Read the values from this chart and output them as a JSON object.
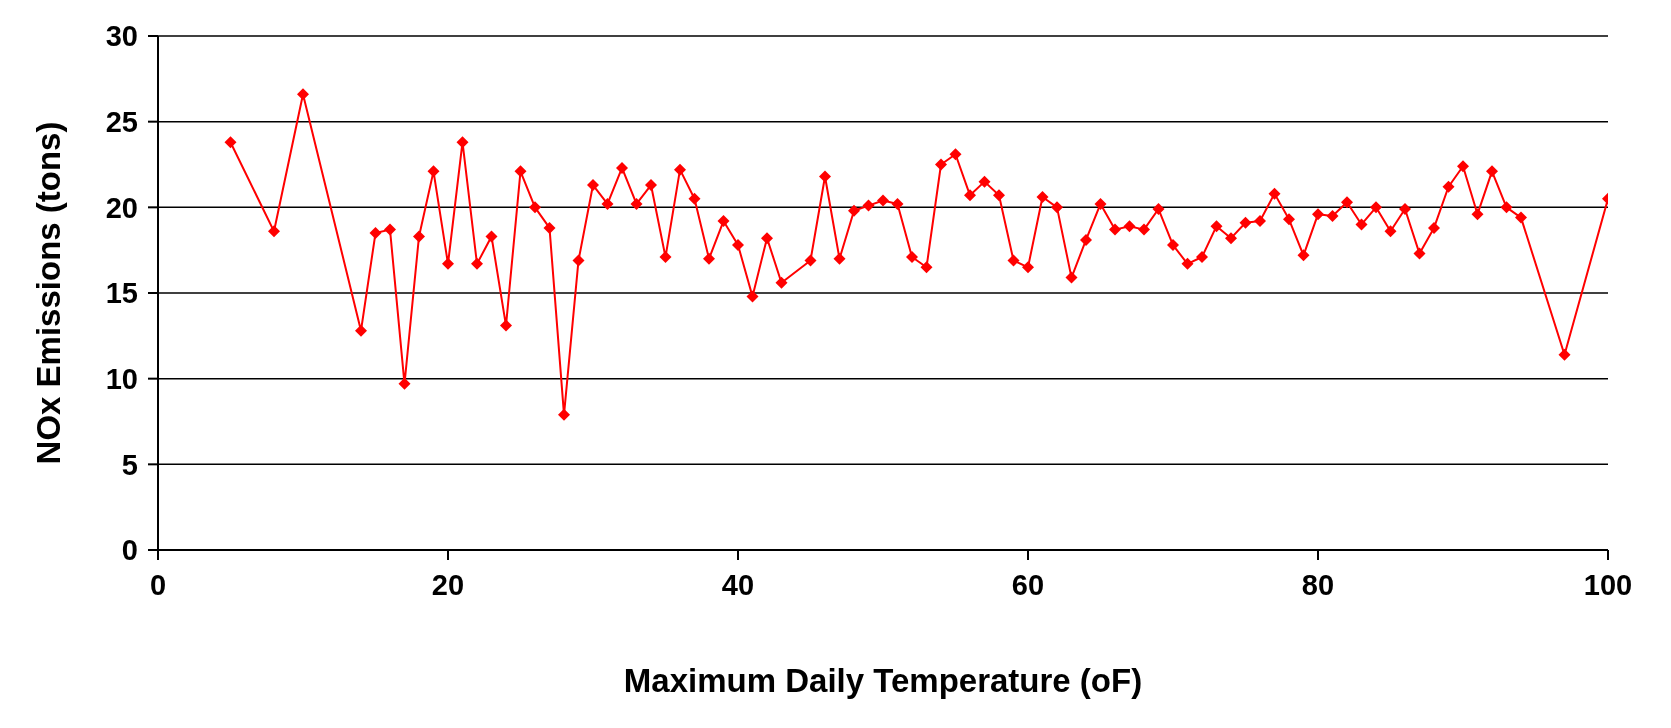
{
  "chart_data": {
    "type": "line",
    "xlabel": "Maximum Daily Temperature (oF)",
    "ylabel": "NOx Emissions (tons)",
    "x": [
      5,
      8,
      10,
      14,
      15,
      16,
      17,
      18,
      19,
      20,
      21,
      22,
      23,
      24,
      25,
      26,
      27,
      28,
      29,
      30,
      31,
      32,
      33,
      34,
      35,
      36,
      37,
      38,
      39,
      40,
      41,
      42,
      43,
      45,
      46,
      47,
      48,
      49,
      50,
      51,
      52,
      53,
      54,
      55,
      56,
      57,
      58,
      59,
      60,
      61,
      62,
      63,
      64,
      65,
      66,
      67,
      68,
      69,
      70,
      71,
      72,
      73,
      74,
      75,
      76,
      77,
      78,
      79,
      80,
      81,
      82,
      83,
      84,
      85,
      86,
      87,
      88,
      89,
      90,
      91,
      92,
      93,
      94,
      97,
      100
    ],
    "series": [
      {
        "color": "#ff0000",
        "values": [
          23.8,
          18.6,
          26.6,
          12.8,
          18.5,
          18.7,
          9.7,
          18.3,
          22.1,
          16.7,
          23.8,
          16.7,
          18.3,
          13.1,
          22.1,
          20.0,
          18.8,
          7.9,
          16.9,
          21.3,
          20.2,
          22.3,
          20.2,
          21.3,
          17.1,
          22.2,
          20.5,
          17.0,
          19.2,
          17.8,
          14.8,
          18.2,
          15.6,
          16.9,
          21.8,
          17.0,
          19.8,
          20.1,
          20.4,
          20.2,
          17.1,
          16.5,
          22.5,
          23.1,
          20.7,
          21.5,
          20.7,
          16.9,
          16.5,
          20.6,
          20.0,
          15.9,
          18.1,
          20.2,
          18.7,
          18.9,
          18.7,
          19.9,
          17.8,
          16.7,
          17.1,
          18.9,
          18.2,
          19.1,
          19.2,
          20.8,
          19.3,
          17.2,
          19.6,
          19.5,
          20.3,
          19.0,
          20.0,
          18.6,
          19.9,
          17.3,
          18.8,
          21.2,
          22.4,
          19.6,
          22.1,
          20.0,
          19.4,
          11.4,
          20.5
        ]
      }
    ],
    "xlim": [
      0,
      100
    ],
    "xticks": [
      0,
      20,
      40,
      60,
      80,
      100
    ],
    "ylim": [
      0,
      30
    ],
    "yticks": [
      0,
      5,
      10,
      15,
      20,
      25,
      30
    ],
    "grid": "y",
    "marker": "diamond",
    "line_style": "solid",
    "legend": false
  }
}
